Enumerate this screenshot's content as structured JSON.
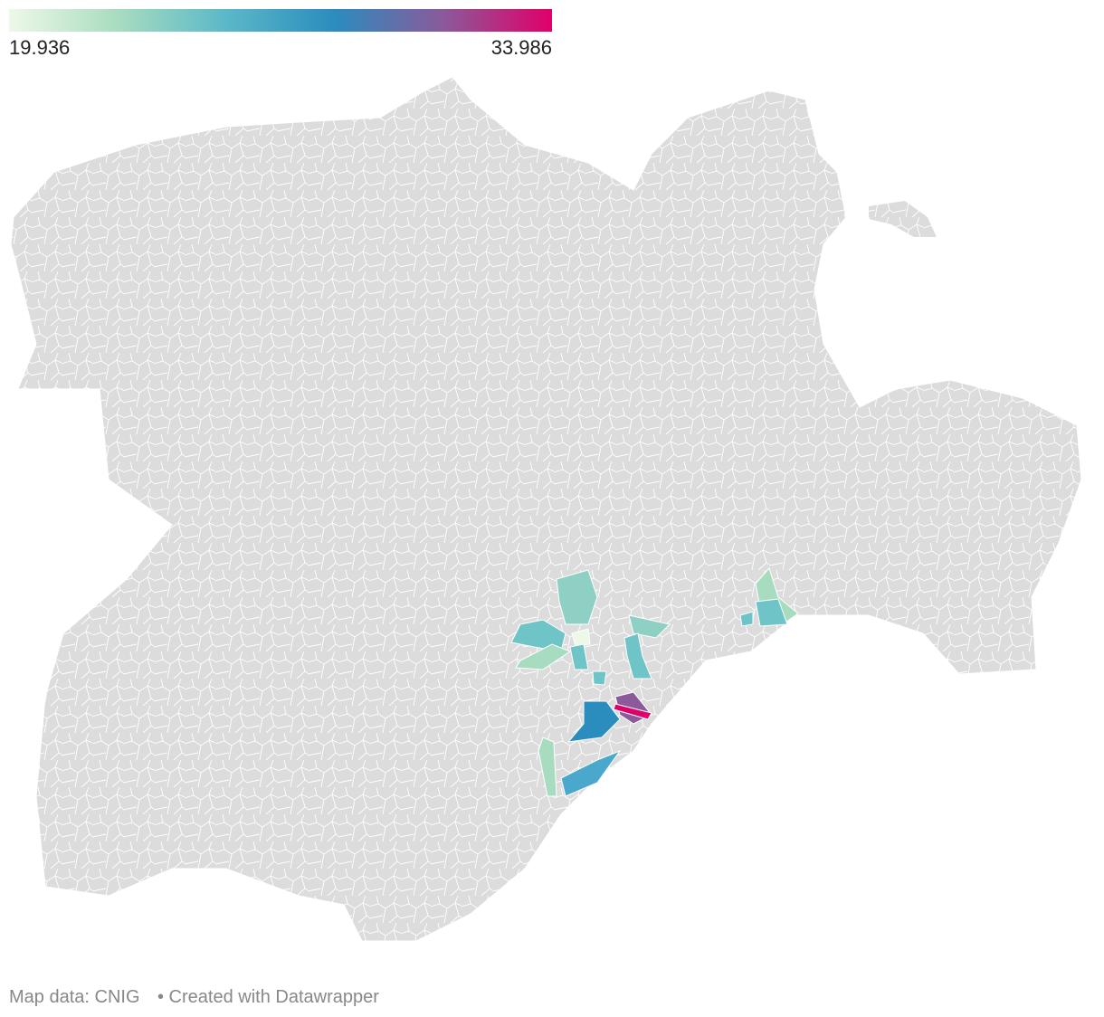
{
  "legend": {
    "min": 19.936,
    "max": 33.986,
    "colors": [
      "#eef8e8",
      "#a8dcc0",
      "#5bb8c8",
      "#2b8cbe",
      "#8a5a9a",
      "#e0006a"
    ]
  },
  "footer": {
    "source": "Map data: CNIG",
    "credit": "• Created with Datawrapper"
  }
}
